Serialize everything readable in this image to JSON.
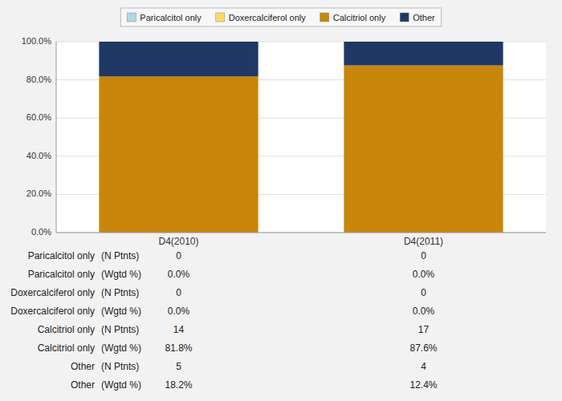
{
  "chart_data": {
    "type": "bar",
    "stacked": true,
    "categories": [
      "D4(2010)",
      "D4(2011)"
    ],
    "series": [
      {
        "name": "Paricalcitol only",
        "values": [
          0.0,
          0.0
        ],
        "color": "#add8e6"
      },
      {
        "name": "Doxercalciferol only",
        "values": [
          0.0,
          0.0
        ],
        "color": "#ffd966"
      },
      {
        "name": "Calcitriol only",
        "values": [
          81.8,
          87.6
        ],
        "color": "#c8860a"
      },
      {
        "name": "Other",
        "values": [
          18.2,
          12.4
        ],
        "color": "#1f3864"
      }
    ],
    "ylim": [
      0,
      100
    ],
    "yticks": [
      {
        "value": 0,
        "label": "0.0%"
      },
      {
        "value": 20,
        "label": "20.0%"
      },
      {
        "value": 40,
        "label": "40.0%"
      },
      {
        "value": 60,
        "label": "60.0%"
      },
      {
        "value": 80,
        "label": "80.0%"
      },
      {
        "value": 100,
        "label": "100.0%"
      }
    ],
    "grid": true,
    "legend": "top",
    "table": [
      [
        "Paricalcitol only",
        "(N Ptnts)",
        "0",
        "0"
      ],
      [
        "Paricalcitol only",
        "(Wgtd %)",
        "0.0%",
        "0.0%"
      ],
      [
        "Doxercalciferol only",
        "(N Ptnts)",
        "0",
        "0"
      ],
      [
        "Doxercalciferol only",
        "(Wgtd %)",
        "0.0%",
        "0.0%"
      ],
      [
        "Calcitriol only",
        "(N Ptnts)",
        "14",
        "17"
      ],
      [
        "Calcitriol only",
        "(Wgtd %)",
        "81.8%",
        "87.6%"
      ],
      [
        "Other",
        "(N Ptnts)",
        "5",
        "4"
      ],
      [
        "Other",
        "(Wgtd %)",
        "18.2%",
        "12.4%"
      ]
    ]
  }
}
